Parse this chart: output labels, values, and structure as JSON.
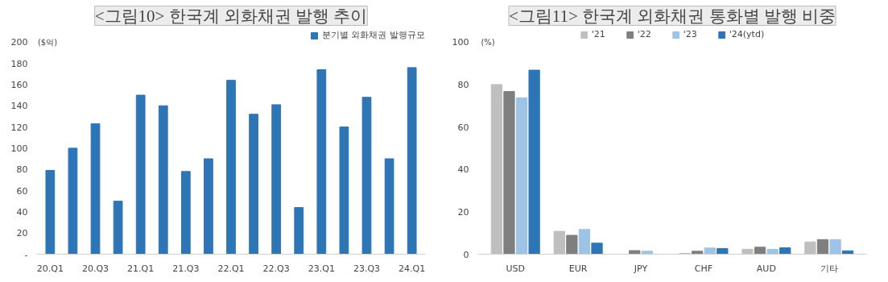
{
  "chart_data": [
    {
      "type": "bar",
      "title": "<그림10> 한국계 외화채권 발행 추이",
      "annotations": [
        "($억)"
      ],
      "categories": [
        "20.Q1",
        null,
        "20.Q3",
        null,
        "21.Q1",
        null,
        "21.Q3",
        null,
        "22.Q1",
        null,
        "22.Q3",
        null,
        "23.Q1",
        null,
        "23.Q3",
        null,
        "24.Q1"
      ],
      "series": [
        {
          "name": "분기별 외화채권 발행규모",
          "color": "#2e75b6",
          "values": [
            79,
            100,
            123,
            50,
            150,
            140,
            78,
            90,
            164,
            132,
            141,
            44,
            174,
            120,
            148,
            90,
            176
          ]
        }
      ],
      "ylim": [
        0,
        200
      ],
      "yticks": [
        {
          "value": 0,
          "label": "-"
        },
        20,
        40,
        60,
        80,
        100,
        120,
        140,
        160,
        180,
        200
      ],
      "grid": false,
      "legend": "top right"
    },
    {
      "type": "bar",
      "title": "<그림11> 한국계 외화채권 통화별 발행 비중",
      "annotations": [
        "(%)"
      ],
      "categories": [
        "USD",
        "EUR",
        "JPY",
        "CHF",
        "AUD",
        "기타"
      ],
      "series": [
        {
          "name": "'21",
          "color": "#bfbfbf",
          "values": [
            80,
            10.8,
            0,
            0.4,
            2.3,
            5.8
          ]
        },
        {
          "name": "'22",
          "color": "#7f7f7f",
          "values": [
            76.7,
            8.9,
            1.7,
            1.4,
            3.3,
            6.9
          ]
        },
        {
          "name": "'23",
          "color": "#9dc3e6",
          "values": [
            73.7,
            11.7,
            1.4,
            2.9,
            2.3,
            6.9
          ]
        },
        {
          "name": "'24(ytd)",
          "color": "#2e75b6",
          "values": [
            86.8,
            5.2,
            0,
            2.7,
            3.0,
            1.6
          ]
        }
      ],
      "ylim": [
        0,
        100
      ],
      "yticks": [
        0,
        20,
        40,
        60,
        80,
        100
      ],
      "grid": false,
      "legend": "top"
    }
  ]
}
